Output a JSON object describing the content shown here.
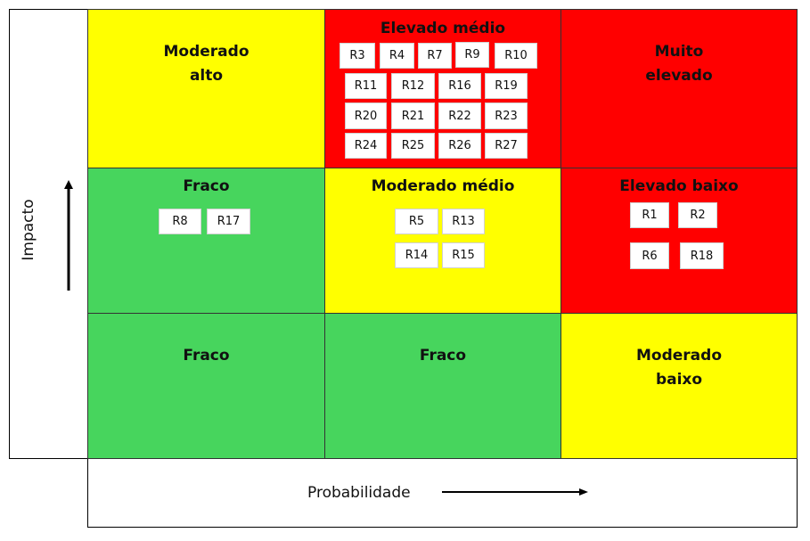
{
  "axes": {
    "y": "Impacto",
    "x": "Probabilidade"
  },
  "cells": [
    {
      "label": "Moderado alto",
      "color": "#ffff00",
      "risks": []
    },
    {
      "label": "Elevado médio",
      "color": "#ff0000",
      "risks": [
        "R3",
        "R4",
        "R7",
        "R9",
        "R10",
        "R11",
        "R12",
        "R16",
        "R19",
        "R20",
        "R21",
        "R22",
        "R23",
        "R24",
        "R25",
        "R26",
        "R27"
      ]
    },
    {
      "label": "Muito elevado",
      "color": "#ff0000",
      "risks": []
    },
    {
      "label": "Fraco",
      "color": "#47d55d",
      "risks": [
        "R8",
        "R17"
      ]
    },
    {
      "label": "Moderado médio",
      "color": "#ffff00",
      "risks": [
        "R5",
        "R13",
        "R14",
        "R15"
      ]
    },
    {
      "label": "Elevado baixo",
      "color": "#ff0000",
      "risks": [
        "R1",
        "R2",
        "R6",
        "R18"
      ]
    },
    {
      "label": "Fraco",
      "color": "#47d55d",
      "risks": []
    },
    {
      "label": "Fraco",
      "color": "#47d55d",
      "risks": []
    },
    {
      "label": "Moderado baixo",
      "color": "#ffff00",
      "risks": []
    }
  ]
}
